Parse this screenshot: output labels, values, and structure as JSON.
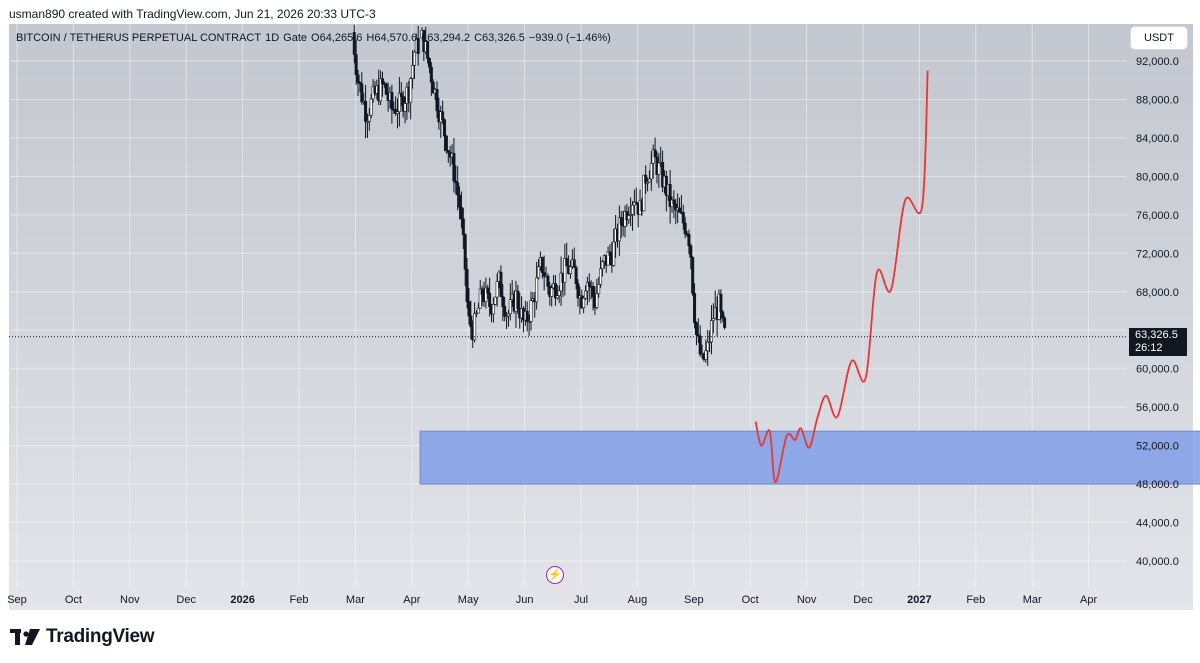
{
  "header": {
    "created_by": "usman890 created with TradingView.com, Jun 21, 2026 20:33 UTC-3"
  },
  "legend": {
    "symbol": "BITCOIN / TETHERUS PERPETUAL CONTRACT",
    "interval": "1D",
    "exchange": "Gate",
    "open": "O64,265.6",
    "high": "H64,570.6",
    "low": "L63,294.2",
    "close": "C63,326.5",
    "change": "−939.0 (−1.46%)"
  },
  "toolbar": {
    "currency_label": "USDT"
  },
  "price_badge": {
    "price": "63,326.5",
    "countdown": "26:12"
  },
  "footer": {
    "logo_text": "TradingView"
  },
  "colors": {
    "projection": "#e53935",
    "zone_fill": "#7f9de8",
    "candle": "#131722"
  },
  "chart_data": {
    "type": "candlestick",
    "y_labels": [
      "92,000.0",
      "88,000.0",
      "84,000.0",
      "80,000.0",
      "76,000.0",
      "72,000.0",
      "68,000.0",
      "64,000.0",
      "60,000.0",
      "56,000.0",
      "52,000.0",
      "48,000.0",
      "44,000.0",
      "40,000.0"
    ],
    "x_labels": [
      "Sep",
      "Oct",
      "Nov",
      "Dec",
      "2026",
      "Feb",
      "Mar",
      "Apr",
      "May",
      "Jun",
      "Jul",
      "Aug",
      "Sep",
      "Oct",
      "Nov",
      "Dec",
      "2027",
      "Feb",
      "Mar",
      "Apr"
    ],
    "ylim": [
      38000,
      93500
    ],
    "last_price": 63326.5,
    "price_path": [
      [
        6.0,
        95000
      ],
      [
        6.1,
        90000
      ],
      [
        6.25,
        86500
      ],
      [
        6.4,
        88500
      ],
      [
        6.55,
        89500
      ],
      [
        6.7,
        87000
      ],
      [
        6.85,
        87500
      ],
      [
        7.0,
        89000
      ],
      [
        7.1,
        93000
      ],
      [
        7.25,
        94500
      ],
      [
        7.4,
        90500
      ],
      [
        7.55,
        86500
      ],
      [
        7.7,
        83000
      ],
      [
        7.8,
        80500
      ],
      [
        7.9,
        77000
      ],
      [
        8.0,
        70500
      ],
      [
        8.05,
        65000
      ],
      [
        8.15,
        64000
      ],
      [
        8.3,
        68000
      ],
      [
        8.45,
        66500
      ],
      [
        8.6,
        69000
      ],
      [
        8.75,
        65500
      ],
      [
        8.9,
        67500
      ],
      [
        9.05,
        64500
      ],
      [
        9.2,
        67000
      ],
      [
        9.35,
        71000
      ],
      [
        9.5,
        68000
      ],
      [
        9.65,
        69000
      ],
      [
        9.8,
        70500
      ],
      [
        9.95,
        70000
      ],
      [
        10.05,
        67000
      ],
      [
        10.15,
        69500
      ],
      [
        10.3,
        67000
      ],
      [
        10.45,
        71000
      ],
      [
        10.6,
        72000
      ],
      [
        10.75,
        75000
      ],
      [
        10.9,
        77000
      ],
      [
        11.0,
        78000
      ],
      [
        11.1,
        76500
      ],
      [
        11.2,
        80000
      ],
      [
        11.35,
        81800
      ],
      [
        11.45,
        80500
      ],
      [
        11.55,
        79000
      ],
      [
        11.65,
        77000
      ],
      [
        11.8,
        75800
      ],
      [
        11.95,
        74500
      ],
      [
        12.0,
        72000
      ],
      [
        12.05,
        67000
      ],
      [
        12.1,
        63500
      ],
      [
        12.2,
        60500
      ],
      [
        12.3,
        62000
      ],
      [
        12.4,
        65500
      ],
      [
        12.5,
        66500
      ],
      [
        12.55,
        64500
      ],
      [
        12.6,
        63500
      ]
    ],
    "projection_path": [
      [
        13.15,
        54500
      ],
      [
        13.25,
        52000
      ],
      [
        13.4,
        53500
      ],
      [
        13.5,
        48200
      ],
      [
        13.7,
        53000
      ],
      [
        13.85,
        52600
      ],
      [
        13.95,
        53800
      ],
      [
        14.1,
        51800
      ],
      [
        14.25,
        55000
      ],
      [
        14.4,
        57200
      ],
      [
        14.6,
        55000
      ],
      [
        14.85,
        60800
      ],
      [
        15.1,
        59000
      ],
      [
        15.3,
        70000
      ],
      [
        15.55,
        68200
      ],
      [
        15.8,
        77500
      ],
      [
        16.1,
        76800
      ],
      [
        16.2,
        91000
      ]
    ],
    "zone": {
      "x_start": 7.2,
      "x_end": 21.5,
      "y_low": 48000,
      "y_high": 53500
    },
    "grid": true,
    "legend_position": "top-left"
  }
}
